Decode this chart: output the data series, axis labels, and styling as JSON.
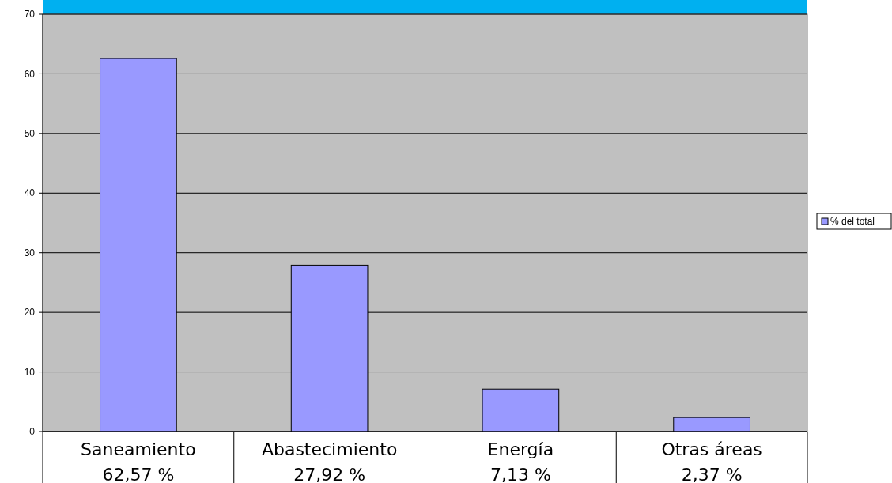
{
  "chart_data": {
    "type": "bar",
    "categories": [
      "Saneamiento",
      "Abastecimiento",
      "Energía",
      "Otras áreas"
    ],
    "series": [
      {
        "name": "% del total",
        "color": "#9999ff",
        "values": [
          62.57,
          27.92,
          7.13,
          2.37
        ],
        "value_labels": [
          "62,57 %",
          "27,92 %",
          "7,13 %",
          "2,37 %"
        ]
      }
    ],
    "ylim": [
      0,
      70
    ],
    "yticks": [
      0,
      10,
      20,
      30,
      40,
      50,
      60,
      70
    ],
    "grid": "y",
    "legend": "right"
  }
}
